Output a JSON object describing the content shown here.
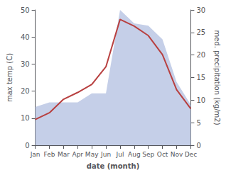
{
  "chart_data": {
    "type": "line",
    "categories": [
      "Jan",
      "Feb",
      "Mar",
      "Apr",
      "May",
      "Jun",
      "Jul",
      "Aug",
      "Sep",
      "Oct",
      "Nov",
      "Dec"
    ],
    "xlabel": "date (month)",
    "ylabel": "max temp (C)",
    "y2label": "med. precipitation (kg/m2)",
    "series": [
      {
        "type": "area",
        "color": "#c5cfe8",
        "axis": "y2",
        "values": [
          8.5,
          9.5,
          9.5,
          9.5,
          11.5,
          11.5,
          30.0,
          27.0,
          26.5,
          23.5,
          14.0,
          9.0
        ]
      },
      {
        "type": "line",
        "color": "#b84040",
        "values": [
          9.5,
          12.0,
          17.0,
          19.5,
          22.5,
          29.0,
          46.5,
          44.0,
          40.5,
          33.5,
          20.5,
          13.5
        ]
      }
    ],
    "ylim": [
      0,
      50
    ],
    "yticks": [
      0,
      10,
      20,
      30,
      40,
      50
    ],
    "y2lim": [
      0,
      30
    ],
    "y2ticks": [
      0,
      5,
      10,
      15,
      20,
      25,
      30
    ],
    "grid": false
  }
}
